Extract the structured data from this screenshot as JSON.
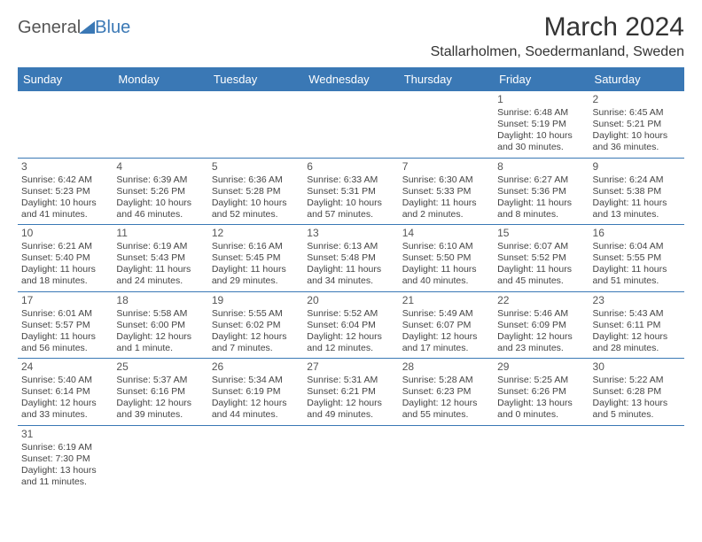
{
  "logo": {
    "part1": "General",
    "part2": "Blue"
  },
  "title": "March 2024",
  "location": "Stallarholmen, Soedermanland, Sweden",
  "colors": {
    "header_bg": "#3a78b5",
    "header_text": "#ffffff",
    "rule": "#3a78b5"
  },
  "typography": {
    "title_fontsize": 30,
    "location_fontsize": 16,
    "dayheader_fontsize": 13,
    "cell_fontsize": 10.5
  },
  "day_names": [
    "Sunday",
    "Monday",
    "Tuesday",
    "Wednesday",
    "Thursday",
    "Friday",
    "Saturday"
  ],
  "weeks": [
    [
      null,
      null,
      null,
      null,
      null,
      {
        "n": "1",
        "sunrise": "Sunrise: 6:48 AM",
        "sunset": "Sunset: 5:19 PM",
        "day1": "Daylight: 10 hours",
        "day2": "and 30 minutes."
      },
      {
        "n": "2",
        "sunrise": "Sunrise: 6:45 AM",
        "sunset": "Sunset: 5:21 PM",
        "day1": "Daylight: 10 hours",
        "day2": "and 36 minutes."
      }
    ],
    [
      {
        "n": "3",
        "sunrise": "Sunrise: 6:42 AM",
        "sunset": "Sunset: 5:23 PM",
        "day1": "Daylight: 10 hours",
        "day2": "and 41 minutes."
      },
      {
        "n": "4",
        "sunrise": "Sunrise: 6:39 AM",
        "sunset": "Sunset: 5:26 PM",
        "day1": "Daylight: 10 hours",
        "day2": "and 46 minutes."
      },
      {
        "n": "5",
        "sunrise": "Sunrise: 6:36 AM",
        "sunset": "Sunset: 5:28 PM",
        "day1": "Daylight: 10 hours",
        "day2": "and 52 minutes."
      },
      {
        "n": "6",
        "sunrise": "Sunrise: 6:33 AM",
        "sunset": "Sunset: 5:31 PM",
        "day1": "Daylight: 10 hours",
        "day2": "and 57 minutes."
      },
      {
        "n": "7",
        "sunrise": "Sunrise: 6:30 AM",
        "sunset": "Sunset: 5:33 PM",
        "day1": "Daylight: 11 hours",
        "day2": "and 2 minutes."
      },
      {
        "n": "8",
        "sunrise": "Sunrise: 6:27 AM",
        "sunset": "Sunset: 5:36 PM",
        "day1": "Daylight: 11 hours",
        "day2": "and 8 minutes."
      },
      {
        "n": "9",
        "sunrise": "Sunrise: 6:24 AM",
        "sunset": "Sunset: 5:38 PM",
        "day1": "Daylight: 11 hours",
        "day2": "and 13 minutes."
      }
    ],
    [
      {
        "n": "10",
        "sunrise": "Sunrise: 6:21 AM",
        "sunset": "Sunset: 5:40 PM",
        "day1": "Daylight: 11 hours",
        "day2": "and 18 minutes."
      },
      {
        "n": "11",
        "sunrise": "Sunrise: 6:19 AM",
        "sunset": "Sunset: 5:43 PM",
        "day1": "Daylight: 11 hours",
        "day2": "and 24 minutes."
      },
      {
        "n": "12",
        "sunrise": "Sunrise: 6:16 AM",
        "sunset": "Sunset: 5:45 PM",
        "day1": "Daylight: 11 hours",
        "day2": "and 29 minutes."
      },
      {
        "n": "13",
        "sunrise": "Sunrise: 6:13 AM",
        "sunset": "Sunset: 5:48 PM",
        "day1": "Daylight: 11 hours",
        "day2": "and 34 minutes."
      },
      {
        "n": "14",
        "sunrise": "Sunrise: 6:10 AM",
        "sunset": "Sunset: 5:50 PM",
        "day1": "Daylight: 11 hours",
        "day2": "and 40 minutes."
      },
      {
        "n": "15",
        "sunrise": "Sunrise: 6:07 AM",
        "sunset": "Sunset: 5:52 PM",
        "day1": "Daylight: 11 hours",
        "day2": "and 45 minutes."
      },
      {
        "n": "16",
        "sunrise": "Sunrise: 6:04 AM",
        "sunset": "Sunset: 5:55 PM",
        "day1": "Daylight: 11 hours",
        "day2": "and 51 minutes."
      }
    ],
    [
      {
        "n": "17",
        "sunrise": "Sunrise: 6:01 AM",
        "sunset": "Sunset: 5:57 PM",
        "day1": "Daylight: 11 hours",
        "day2": "and 56 minutes."
      },
      {
        "n": "18",
        "sunrise": "Sunrise: 5:58 AM",
        "sunset": "Sunset: 6:00 PM",
        "day1": "Daylight: 12 hours",
        "day2": "and 1 minute."
      },
      {
        "n": "19",
        "sunrise": "Sunrise: 5:55 AM",
        "sunset": "Sunset: 6:02 PM",
        "day1": "Daylight: 12 hours",
        "day2": "and 7 minutes."
      },
      {
        "n": "20",
        "sunrise": "Sunrise: 5:52 AM",
        "sunset": "Sunset: 6:04 PM",
        "day1": "Daylight: 12 hours",
        "day2": "and 12 minutes."
      },
      {
        "n": "21",
        "sunrise": "Sunrise: 5:49 AM",
        "sunset": "Sunset: 6:07 PM",
        "day1": "Daylight: 12 hours",
        "day2": "and 17 minutes."
      },
      {
        "n": "22",
        "sunrise": "Sunrise: 5:46 AM",
        "sunset": "Sunset: 6:09 PM",
        "day1": "Daylight: 12 hours",
        "day2": "and 23 minutes."
      },
      {
        "n": "23",
        "sunrise": "Sunrise: 5:43 AM",
        "sunset": "Sunset: 6:11 PM",
        "day1": "Daylight: 12 hours",
        "day2": "and 28 minutes."
      }
    ],
    [
      {
        "n": "24",
        "sunrise": "Sunrise: 5:40 AM",
        "sunset": "Sunset: 6:14 PM",
        "day1": "Daylight: 12 hours",
        "day2": "and 33 minutes."
      },
      {
        "n": "25",
        "sunrise": "Sunrise: 5:37 AM",
        "sunset": "Sunset: 6:16 PM",
        "day1": "Daylight: 12 hours",
        "day2": "and 39 minutes."
      },
      {
        "n": "26",
        "sunrise": "Sunrise: 5:34 AM",
        "sunset": "Sunset: 6:19 PM",
        "day1": "Daylight: 12 hours",
        "day2": "and 44 minutes."
      },
      {
        "n": "27",
        "sunrise": "Sunrise: 5:31 AM",
        "sunset": "Sunset: 6:21 PM",
        "day1": "Daylight: 12 hours",
        "day2": "and 49 minutes."
      },
      {
        "n": "28",
        "sunrise": "Sunrise: 5:28 AM",
        "sunset": "Sunset: 6:23 PM",
        "day1": "Daylight: 12 hours",
        "day2": "and 55 minutes."
      },
      {
        "n": "29",
        "sunrise": "Sunrise: 5:25 AM",
        "sunset": "Sunset: 6:26 PM",
        "day1": "Daylight: 13 hours",
        "day2": "and 0 minutes."
      },
      {
        "n": "30",
        "sunrise": "Sunrise: 5:22 AM",
        "sunset": "Sunset: 6:28 PM",
        "day1": "Daylight: 13 hours",
        "day2": "and 5 minutes."
      }
    ],
    [
      {
        "n": "31",
        "sunrise": "Sunrise: 6:19 AM",
        "sunset": "Sunset: 7:30 PM",
        "day1": "Daylight: 13 hours",
        "day2": "and 11 minutes."
      },
      null,
      null,
      null,
      null,
      null,
      null
    ]
  ]
}
